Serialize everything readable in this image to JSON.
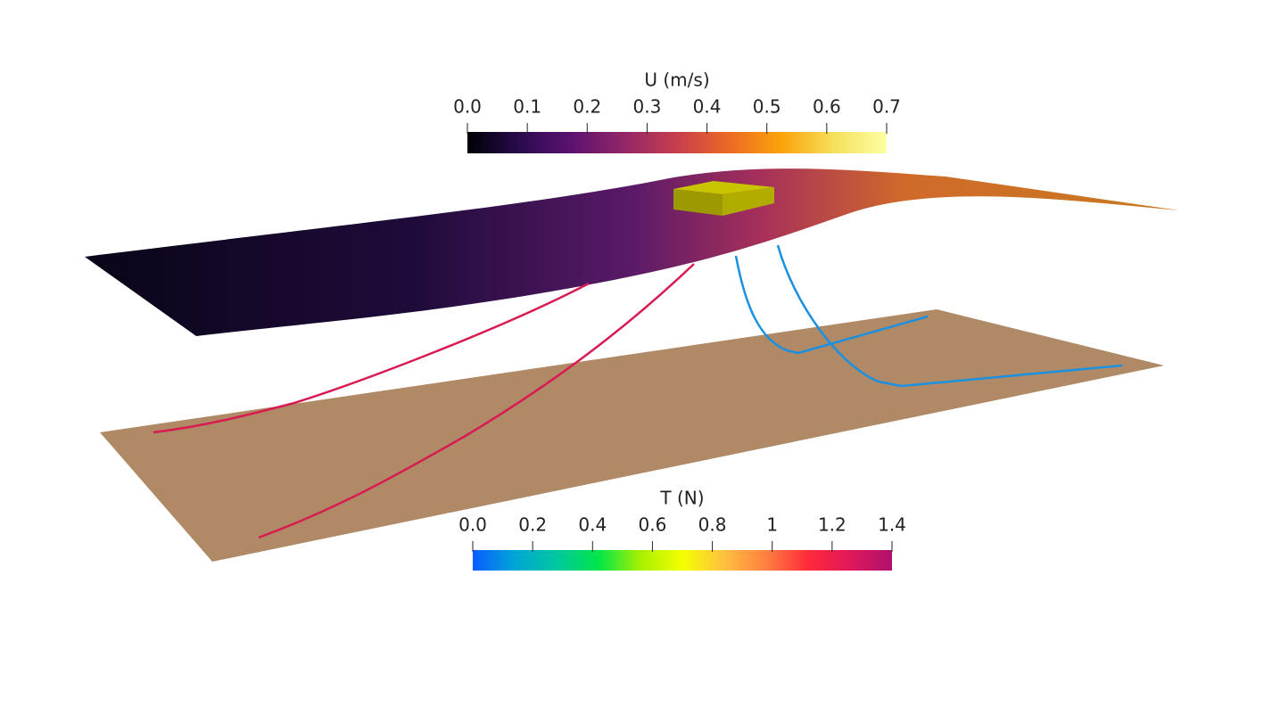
{
  "colorbars": [
    {
      "title": "U (m/s)",
      "range": [
        0,
        0.7
      ],
      "ticks": [
        {
          "value": 0,
          "label": "0.0"
        },
        0.1,
        0.2,
        0.3,
        0.4,
        0.5,
        0.6,
        0.7
      ],
      "colors": [
        "#000004",
        "#2a0b4f",
        "#5c1270",
        "#932667",
        "#c73e4c",
        "#ec6a24",
        "#fba40a",
        "#f6e05c",
        "#fcffa4"
      ]
    },
    {
      "title": "T (N)",
      "range": [
        0,
        1.4
      ],
      "ticks": [
        {
          "value": 0,
          "label": "0.0"
        },
        0.2,
        0.4,
        0.6,
        0.8,
        1,
        1.2,
        1.4
      ],
      "colors": [
        "#0a5cff",
        "#00a6d6",
        "#00c7a0",
        "#00e64a",
        "#a8f000",
        "#f5ff00",
        "#ffc040",
        "#ff7f40",
        "#ff2a3a",
        "#e0185a",
        "#b0106e"
      ]
    }
  ]
}
